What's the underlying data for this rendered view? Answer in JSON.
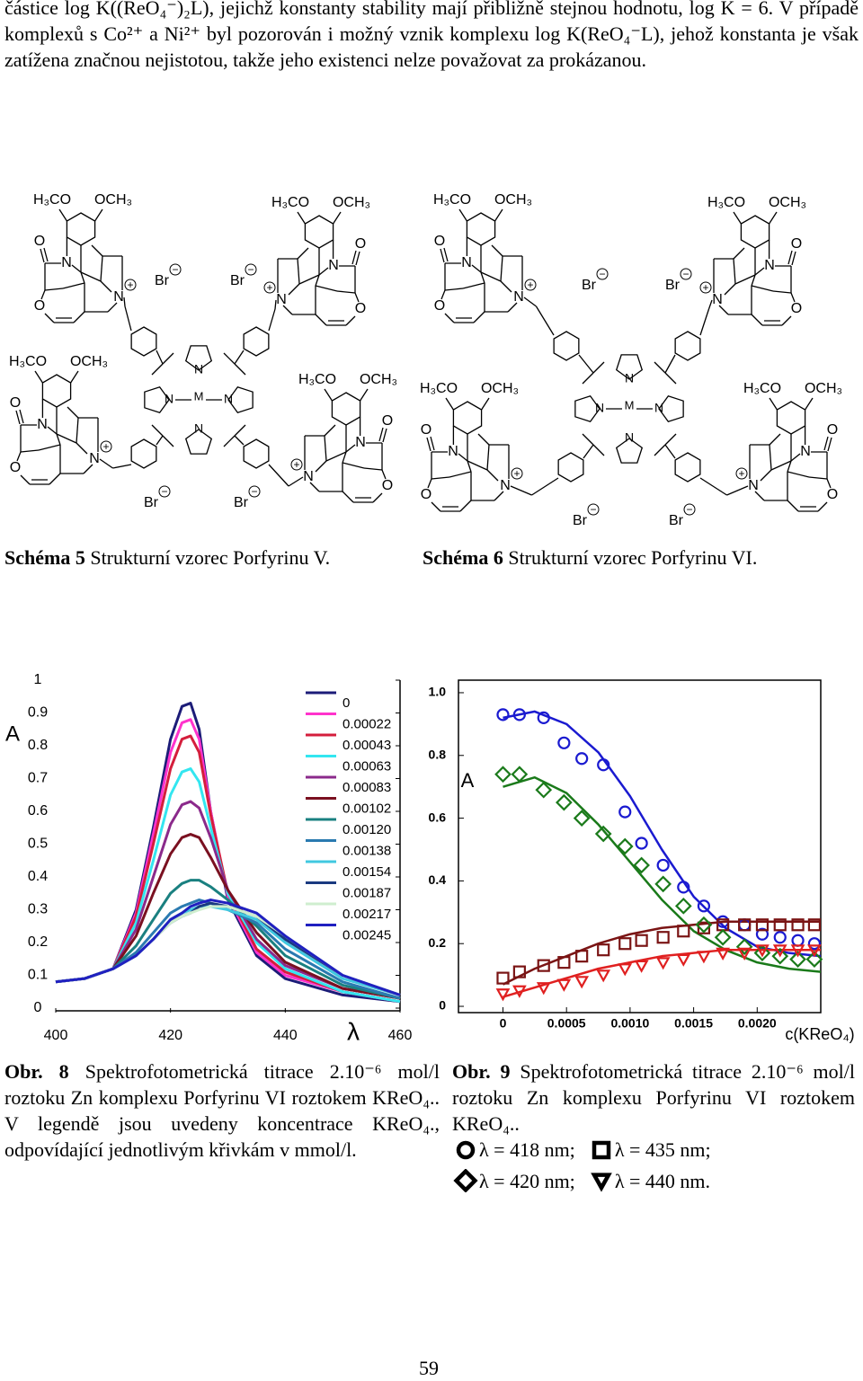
{
  "paragraph": "částice log K((ReO₄⁻)₂L), jejichž konstanty stability mají přibližně stejnou hodnotu, log K = 6. V případě komplexů s Co²⁺ a Ni²⁺ byl pozorován i možný vznik komplexu log K(ReO₄⁻L), jehož konstanta je však zatížena značnou nejistotou, takže jeho existenci nelze považovat za prokázanou.",
  "atoms": {
    "methoxy_left": "H₃CO",
    "methoxy_right": "OCH₃",
    "oxygen": "O",
    "nitrogen": "N",
    "bromide": "Br",
    "metal": "M",
    "plus": "+",
    "minus": "−"
  },
  "schemes": [
    {
      "label": "Schéma 5",
      "text": "Strukturní vzorec Porfyrinu V."
    },
    {
      "label": "Schéma 6",
      "text": "Strukturní vzorec Porfyrinu VI."
    }
  ],
  "captions": [
    {
      "label": "Obr. 8",
      "text": "Spektrofotometrická titrace 2.10⁻⁶ mol/l roztoku Zn komplexu Porfyrinu VI roztokem KReO₄.. V legendě jsou uvedeny koncentrace KReO₄., odpovídající jednotlivým křivkám v mmol/l."
    },
    {
      "label": "Obr. 9",
      "text": "Spektrofotometrická titrace 2.10⁻⁶ mol/l roztoku Zn komplexu Porfyrinu VI roztokem KReO₄.."
    }
  ],
  "page_number": "59",
  "chart_data": [
    {
      "type": "line",
      "y_label": "A",
      "x_label": "λ",
      "xlim": [
        400,
        460
      ],
      "ylim": [
        0,
        1
      ],
      "xticks": [
        400,
        420,
        440,
        460
      ],
      "yticks": [
        0,
        0.1,
        0.2,
        0.3,
        0.4,
        0.5,
        0.6,
        0.7,
        0.8,
        0.9,
        1
      ],
      "x": [
        400,
        405,
        410,
        414,
        417,
        420,
        422,
        423.5,
        425,
        427,
        430,
        435,
        440,
        450,
        460
      ],
      "series": [
        {
          "name": "0",
          "color": "#1c1c78",
          "values": [
            0.08,
            0.09,
            0.12,
            0.3,
            0.55,
            0.82,
            0.92,
            0.93,
            0.85,
            0.6,
            0.33,
            0.16,
            0.09,
            0.04,
            0.02
          ]
        },
        {
          "name": "0.00022",
          "color": "#ff33cc",
          "values": [
            0.08,
            0.09,
            0.12,
            0.29,
            0.53,
            0.78,
            0.87,
            0.88,
            0.82,
            0.6,
            0.34,
            0.17,
            0.1,
            0.05,
            0.02
          ]
        },
        {
          "name": "0.00043",
          "color": "#d41e3c",
          "values": [
            0.08,
            0.09,
            0.12,
            0.28,
            0.5,
            0.73,
            0.82,
            0.83,
            0.78,
            0.59,
            0.35,
            0.18,
            0.11,
            0.05,
            0.02
          ]
        },
        {
          "name": "0.00063",
          "color": "#33e6f0",
          "values": [
            0.08,
            0.09,
            0.12,
            0.26,
            0.45,
            0.65,
            0.72,
            0.73,
            0.69,
            0.55,
            0.35,
            0.2,
            0.12,
            0.05,
            0.02
          ]
        },
        {
          "name": "0.00083",
          "color": "#8b2a8b",
          "values": [
            0.08,
            0.09,
            0.12,
            0.24,
            0.4,
            0.56,
            0.62,
            0.63,
            0.61,
            0.52,
            0.36,
            0.21,
            0.13,
            0.06,
            0.03
          ]
        },
        {
          "name": "0.00102",
          "color": "#7a1020",
          "values": [
            0.08,
            0.09,
            0.12,
            0.22,
            0.35,
            0.47,
            0.52,
            0.53,
            0.52,
            0.46,
            0.36,
            0.23,
            0.14,
            0.06,
            0.03
          ]
        },
        {
          "name": "0.00120",
          "color": "#1a8080",
          "values": [
            0.08,
            0.09,
            0.12,
            0.19,
            0.27,
            0.35,
            0.38,
            0.39,
            0.39,
            0.37,
            0.33,
            0.25,
            0.16,
            0.07,
            0.03
          ]
        },
        {
          "name": "0.00138",
          "color": "#2a7ab0",
          "values": [
            0.08,
            0.09,
            0.12,
            0.17,
            0.23,
            0.29,
            0.31,
            0.32,
            0.33,
            0.32,
            0.3,
            0.26,
            0.18,
            0.08,
            0.03
          ]
        },
        {
          "name": "0.00154",
          "color": "#40c8e0",
          "values": [
            0.08,
            0.09,
            0.12,
            0.16,
            0.21,
            0.27,
            0.29,
            0.3,
            0.31,
            0.31,
            0.3,
            0.27,
            0.2,
            0.09,
            0.04
          ]
        },
        {
          "name": "0.00187",
          "color": "#1a3a80",
          "values": [
            0.08,
            0.09,
            0.12,
            0.16,
            0.21,
            0.26,
            0.28,
            0.29,
            0.31,
            0.32,
            0.31,
            0.28,
            0.21,
            0.1,
            0.04
          ]
        },
        {
          "name": "0.00217",
          "color": "#cfeecf",
          "values": [
            0.08,
            0.09,
            0.12,
            0.16,
            0.21,
            0.26,
            0.28,
            0.29,
            0.3,
            0.31,
            0.31,
            0.28,
            0.22,
            0.1,
            0.04
          ]
        },
        {
          "name": "0.00245",
          "color": "#2020c0",
          "values": [
            0.08,
            0.09,
            0.12,
            0.16,
            0.21,
            0.27,
            0.29,
            0.31,
            0.32,
            0.33,
            0.32,
            0.29,
            0.22,
            0.1,
            0.04
          ]
        }
      ]
    },
    {
      "type": "scatter",
      "y_label": "A",
      "x_label": "c(KReO₄)",
      "xlim": [
        -0.00035,
        0.0025
      ],
      "ylim": [
        -0.02,
        1.04
      ],
      "xticks": [
        0,
        0.0005,
        {
          "value": 0.001,
          "label": "0.0010"
        },
        0.0015,
        {
          "value": 0.002,
          "label": "0.0020"
        }
      ],
      "yticks": [
        0,
        0.2,
        0.4,
        0.6,
        0.8,
        {
          "value": 1,
          "label": "1.0"
        }
      ],
      "x": [
        0,
        0.00013,
        0.00032,
        0.00048,
        0.00062,
        0.00079,
        0.00096,
        0.00109,
        0.00126,
        0.00142,
        0.00158,
        0.00173,
        0.0019,
        0.00204,
        0.00218,
        0.00232,
        0.00245
      ],
      "series": [
        {
          "name": "λ = 418 nm;",
          "marker": "circle",
          "color": "#1a1ad0",
          "values": [
            0.93,
            0.93,
            0.92,
            0.84,
            0.79,
            0.77,
            0.62,
            0.52,
            0.45,
            0.38,
            0.32,
            0.27,
            0.26,
            0.23,
            0.22,
            0.21,
            0.2
          ]
        },
        {
          "name": "λ = 435 nm;",
          "marker": "square",
          "color": "#7a1414",
          "values": [
            0.09,
            0.11,
            0.13,
            0.14,
            0.16,
            0.18,
            0.2,
            0.21,
            0.22,
            0.24,
            0.25,
            0.26,
            0.26,
            0.26,
            0.26,
            0.26,
            0.26
          ]
        },
        {
          "name": "λ = 420 nm;",
          "marker": "diamond",
          "color": "#1a7a1a",
          "values": [
            0.74,
            0.74,
            0.69,
            0.65,
            0.6,
            0.55,
            0.51,
            0.45,
            0.39,
            0.32,
            0.26,
            0.22,
            0.19,
            0.17,
            0.16,
            0.15,
            0.15
          ]
        },
        {
          "name": "λ = 440 nm.",
          "marker": "triangle",
          "color": "#e02020",
          "values": [
            0.04,
            0.05,
            0.06,
            0.07,
            0.08,
            0.1,
            0.12,
            0.13,
            0.14,
            0.15,
            0.16,
            0.17,
            0.17,
            0.18,
            0.18,
            0.18,
            0.18
          ]
        }
      ],
      "fit_x": [
        0,
        0.00025,
        0.0005,
        0.00075,
        0.001,
        0.00125,
        0.0015,
        0.00175,
        0.002,
        0.00225,
        0.0025
      ],
      "fits": [
        {
          "color": "#1a1ad0",
          "values": [
            0.92,
            0.94,
            0.9,
            0.81,
            0.67,
            0.5,
            0.35,
            0.25,
            0.19,
            0.17,
            0.16
          ]
        },
        {
          "color": "#7a1414",
          "values": [
            0.07,
            0.12,
            0.16,
            0.2,
            0.23,
            0.25,
            0.26,
            0.27,
            0.27,
            0.27,
            0.27
          ]
        },
        {
          "color": "#1a7a1a",
          "values": [
            0.7,
            0.73,
            0.68,
            0.58,
            0.46,
            0.34,
            0.24,
            0.18,
            0.14,
            0.12,
            0.11
          ]
        },
        {
          "color": "#e02020",
          "values": [
            0.03,
            0.06,
            0.09,
            0.12,
            0.14,
            0.16,
            0.17,
            0.18,
            0.18,
            0.18,
            0.18
          ]
        }
      ]
    }
  ]
}
